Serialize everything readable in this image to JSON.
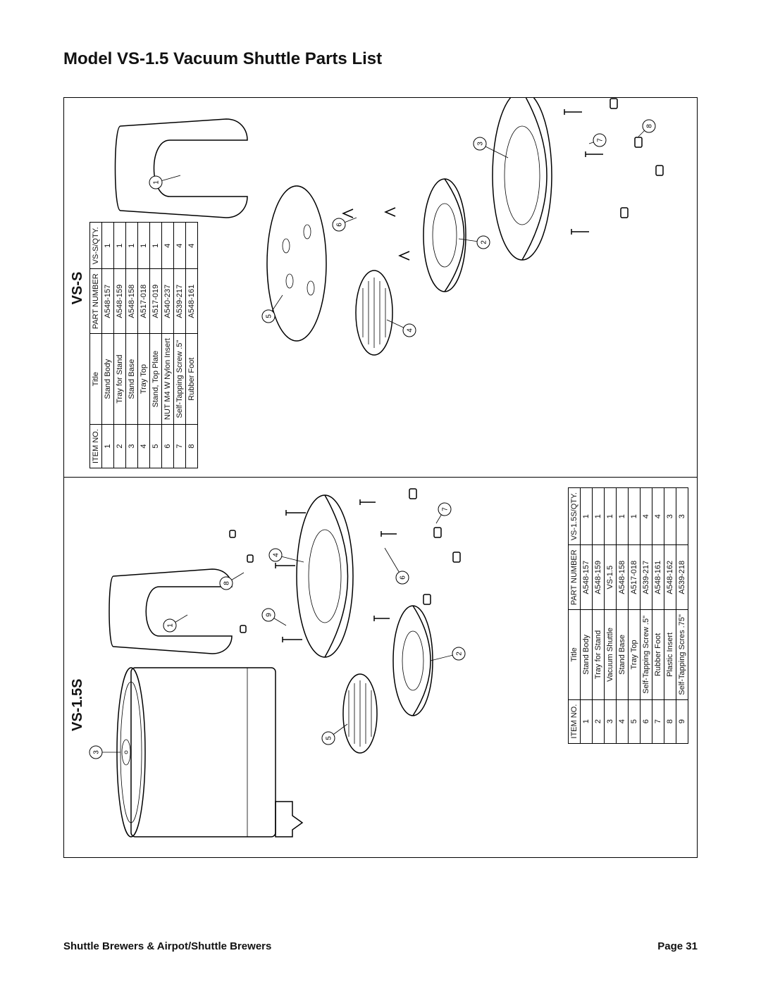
{
  "page_title": "Model VS-1.5 Vacuum Shuttle Parts List",
  "footer_left": "Shuttle Brewers & Airpot/Shuttle Brewers",
  "footer_right": "Page 31",
  "panel_left": {
    "label": "VS-1.5S",
    "table": {
      "headers": [
        "ITEM NO.",
        "Title",
        "PART NUMBER",
        "VS-1.5S/QTY."
      ],
      "rows": [
        [
          "1",
          "Stand Body",
          "A548-157",
          "1"
        ],
        [
          "2",
          "Tray for Stand",
          "A548-159",
          "1"
        ],
        [
          "3",
          "Vacuum Shuttle",
          "VS-1.5",
          "1"
        ],
        [
          "4",
          "Stand Base",
          "A548-158",
          "1"
        ],
        [
          "5",
          "Tray Top",
          "A517-018",
          "1"
        ],
        [
          "6",
          "Self-Tapping Screw .5\"",
          "A539-217",
          "4"
        ],
        [
          "7",
          "Rubber Foot",
          "A548-161",
          "4"
        ],
        [
          "8",
          "Plastic Insert",
          "A548-162",
          "3"
        ],
        [
          "9",
          "Self-Tapping Scres .75\"",
          "A539-218",
          "3"
        ]
      ]
    }
  },
  "panel_right": {
    "label": "VS-S",
    "table": {
      "headers": [
        "ITEM NO.",
        "Title",
        "PART NUMBER",
        "VS-S/QTY."
      ],
      "rows": [
        [
          "1",
          "Stand Body",
          "A548-157",
          "1"
        ],
        [
          "2",
          "Tray for Stand",
          "A548-159",
          "1"
        ],
        [
          "3",
          "Stand Base",
          "A548-158",
          "1"
        ],
        [
          "4",
          "Tray Top",
          "A517-018",
          "1"
        ],
        [
          "5",
          "Stand, Top Plate",
          "A517-019",
          "1"
        ],
        [
          "6",
          "NUT M4 W Nylon Insert",
          "A540-237",
          "4"
        ],
        [
          "7",
          "Self-Tapping Screw .5\"",
          "A539-217",
          "4"
        ],
        [
          "8",
          "Rubber Foot",
          "A548-161",
          "4"
        ]
      ]
    }
  },
  "callouts_left": [
    "1",
    "2",
    "3",
    "4",
    "5",
    "6",
    "7",
    "8",
    "9"
  ],
  "callouts_right": [
    "1",
    "2",
    "3",
    "4",
    "5",
    "6",
    "7",
    "8"
  ]
}
